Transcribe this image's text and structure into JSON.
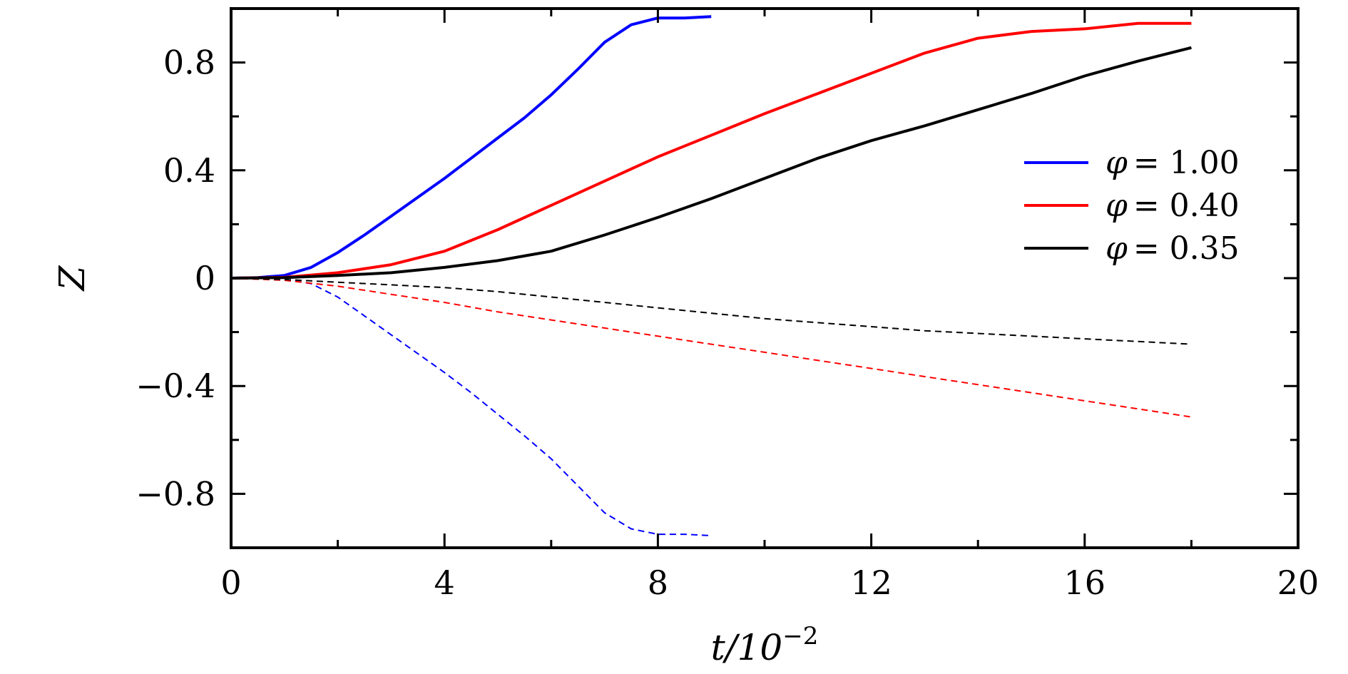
{
  "chart_data": {
    "type": "line",
    "title": "",
    "xlabel": "t/10",
    "xlabel_exponent": "−2",
    "ylabel": "Z",
    "xlim": [
      0,
      20
    ],
    "ylim": [
      -1.0,
      1.0
    ],
    "x_ticks": [
      {
        "value": 0,
        "label": "0"
      },
      {
        "value": 4,
        "label": "4"
      },
      {
        "value": 8,
        "label": "8"
      },
      {
        "value": 12,
        "label": "12"
      },
      {
        "value": 16,
        "label": "16"
      },
      {
        "value": 20,
        "label": "20"
      }
    ],
    "x_minor_ticks": [
      2,
      6,
      10,
      14,
      18
    ],
    "y_ticks": [
      {
        "value": 0.8,
        "label": "0.8"
      },
      {
        "value": 0.4,
        "label": "0.4"
      },
      {
        "value": 0,
        "label": "0"
      },
      {
        "value": -0.4,
        "label": "−0.4"
      },
      {
        "value": -0.8,
        "label": "−0.8"
      }
    ],
    "y_minor_ticks": [
      0.6,
      0.2,
      -0.2,
      -0.6
    ],
    "grid": false,
    "legend_position": "right",
    "series": [
      {
        "name": "φ = 1.00",
        "legend_symbol": "φ",
        "legend_value": "= 1.00",
        "color": "#0000ff",
        "style": "solid",
        "x": [
          0,
          0.5,
          1.0,
          1.5,
          2.0,
          2.5,
          3.0,
          3.5,
          4.0,
          4.5,
          5.0,
          5.5,
          6.0,
          6.5,
          7.0,
          7.5,
          8.0,
          8.5,
          9.0
        ],
        "y": [
          0,
          0.002,
          0.01,
          0.04,
          0.095,
          0.16,
          0.23,
          0.3,
          0.37,
          0.445,
          0.52,
          0.595,
          0.68,
          0.775,
          0.875,
          0.94,
          0.965,
          0.965,
          0.97
        ]
      },
      {
        "name": "",
        "color": "#0000ff",
        "style": "dashed",
        "x": [
          0,
          0.5,
          1.0,
          1.5,
          2.0,
          2.5,
          3.0,
          3.5,
          4.0,
          4.5,
          5.0,
          5.5,
          6.0,
          6.5,
          7.0,
          7.5,
          8.0,
          8.5,
          9.0
        ],
        "y": [
          0,
          -0.002,
          -0.005,
          -0.02,
          -0.07,
          -0.14,
          -0.21,
          -0.28,
          -0.35,
          -0.425,
          -0.505,
          -0.585,
          -0.67,
          -0.77,
          -0.87,
          -0.93,
          -0.95,
          -0.95,
          -0.955
        ]
      },
      {
        "name": "φ = 0.40",
        "legend_symbol": "φ",
        "legend_value": "= 0.40",
        "color": "#ff0000",
        "style": "solid",
        "x": [
          0,
          1,
          2,
          3,
          4,
          5,
          6,
          7,
          8,
          9,
          10,
          11,
          12,
          13,
          14,
          15,
          16,
          17,
          18
        ],
        "y": [
          0,
          0.003,
          0.02,
          0.05,
          0.1,
          0.18,
          0.27,
          0.36,
          0.45,
          0.53,
          0.61,
          0.685,
          0.76,
          0.835,
          0.89,
          0.915,
          0.925,
          0.945,
          0.945
        ]
      },
      {
        "name": "",
        "color": "#ff0000",
        "style": "dashed",
        "x": [
          0,
          1,
          2,
          3,
          4,
          5,
          6,
          7,
          8,
          9,
          10,
          11,
          12,
          13,
          14,
          15,
          16,
          17,
          18
        ],
        "y": [
          0,
          -0.008,
          -0.03,
          -0.06,
          -0.09,
          -0.125,
          -0.155,
          -0.185,
          -0.215,
          -0.245,
          -0.275,
          -0.305,
          -0.335,
          -0.365,
          -0.395,
          -0.425,
          -0.455,
          -0.485,
          -0.515
        ]
      },
      {
        "name": "φ = 0.35",
        "legend_symbol": "φ",
        "legend_value": "= 0.35",
        "color": "#000000",
        "style": "solid",
        "x": [
          0,
          1,
          2,
          3,
          4,
          5,
          6,
          7,
          8,
          9,
          10,
          11,
          12,
          13,
          14,
          15,
          16,
          17,
          18
        ],
        "y": [
          0,
          0.002,
          0.01,
          0.02,
          0.04,
          0.065,
          0.1,
          0.16,
          0.225,
          0.295,
          0.37,
          0.445,
          0.51,
          0.565,
          0.625,
          0.685,
          0.75,
          0.805,
          0.855
        ]
      },
      {
        "name": "",
        "color": "#000000",
        "style": "dashed",
        "x": [
          0,
          1,
          2,
          3,
          4,
          5,
          6,
          7,
          8,
          9,
          10,
          11,
          12,
          13,
          14,
          15,
          16,
          17,
          18
        ],
        "y": [
          0,
          -0.005,
          -0.015,
          -0.025,
          -0.035,
          -0.05,
          -0.07,
          -0.09,
          -0.11,
          -0.13,
          -0.15,
          -0.165,
          -0.18,
          -0.195,
          -0.205,
          -0.215,
          -0.225,
          -0.235,
          -0.245
        ]
      }
    ]
  }
}
